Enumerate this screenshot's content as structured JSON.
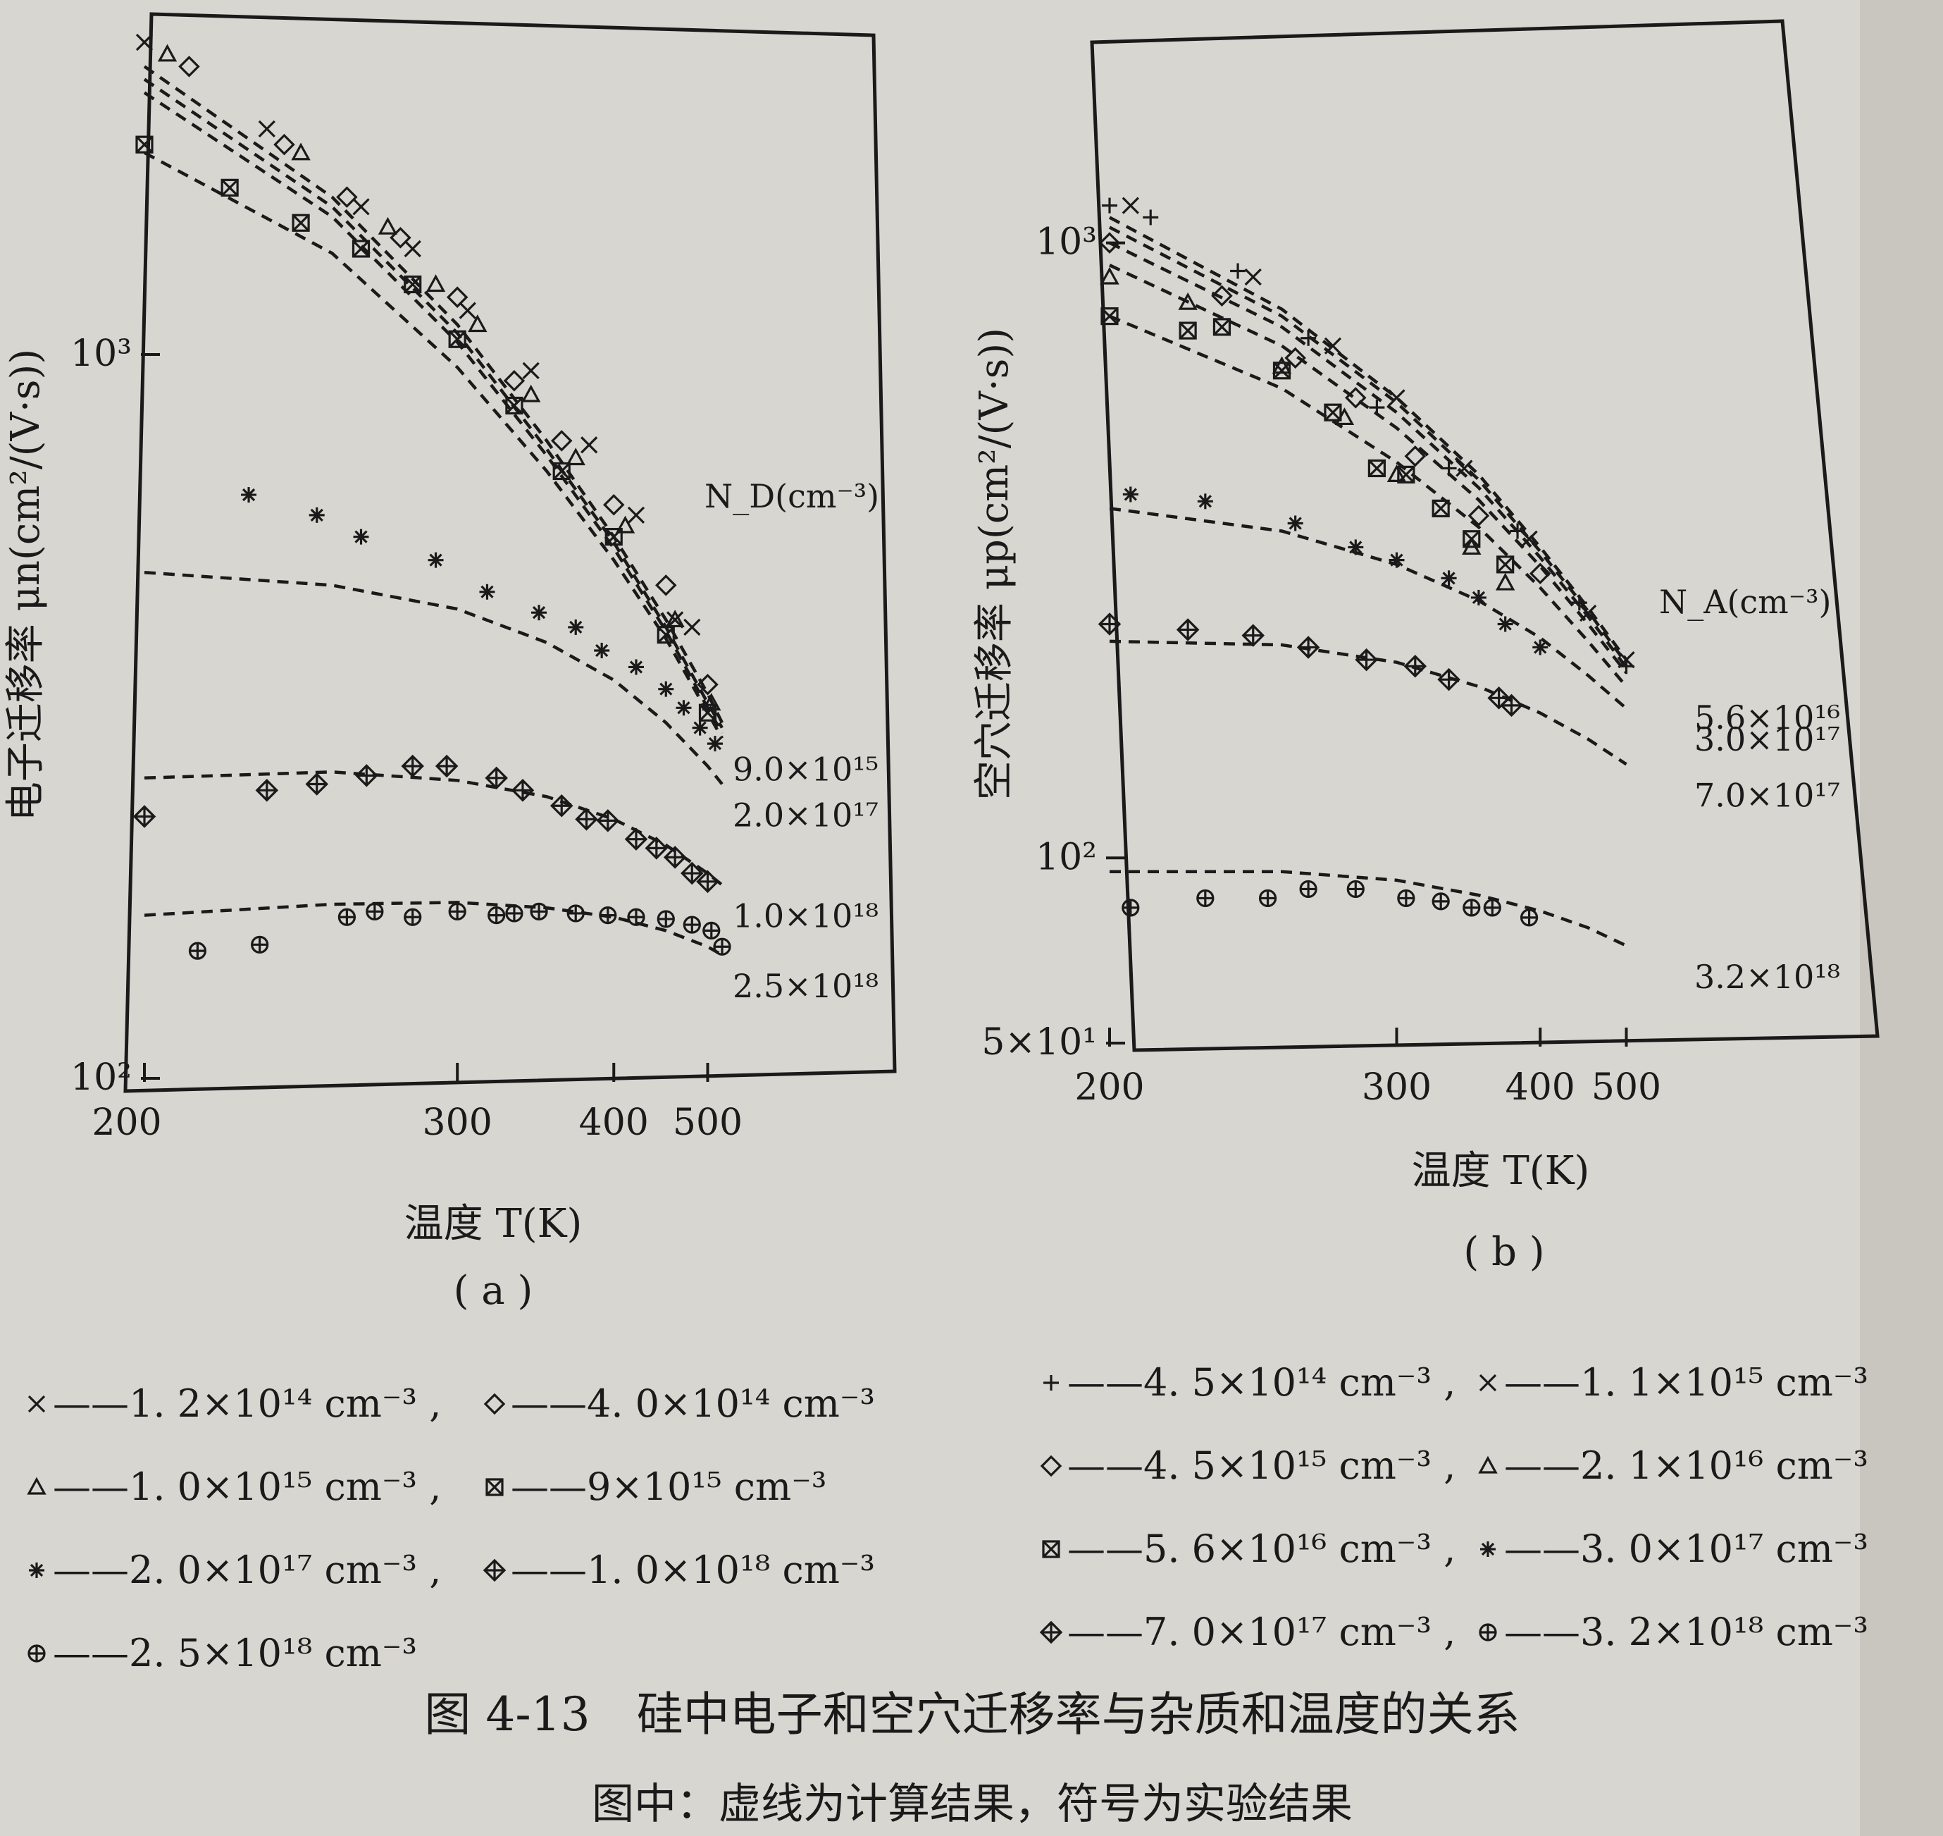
{
  "chart_data": [
    {
      "panel_label": "( a )",
      "type": "scatter",
      "xlabel": "温度 T(K)",
      "ylabel": "电子迁移率 μn(cm²/(V·s))",
      "xscale": "reciprocal",
      "yscale": "log",
      "xlim": [
        200,
        520
      ],
      "ylim": [
        100,
        2700
      ],
      "x_ticks": [
        "200",
        "300",
        "400",
        "500"
      ],
      "x_tick_values": [
        200,
        300,
        400,
        500
      ],
      "y_ticks": [
        "10²",
        "10³"
      ],
      "y_tick_values": [
        100,
        1000
      ],
      "legend_title": "N_D(cm⁻³)",
      "curve_labels": [
        "9.0×10¹⁵",
        "2.0×10¹⁷",
        "1.0×10¹⁸",
        "2.5×10¹⁸"
      ],
      "legend": [
        {
          "symbol": "x",
          "text": "——1. 2×10¹⁴ cm⁻³ ,"
        },
        {
          "symbol": "diamond",
          "text": "——4. 0×10¹⁴ cm⁻³"
        },
        {
          "symbol": "triangle",
          "text": "——1. 0×10¹⁵ cm⁻³ ,"
        },
        {
          "symbol": "boxx",
          "text": "——9×10¹⁵ cm⁻³"
        },
        {
          "symbol": "star",
          "text": "——2. 0×10¹⁷ cm⁻³ ,"
        },
        {
          "symbol": "diamondplus",
          "text": "——1. 0×10¹⁸ cm⁻³"
        },
        {
          "symbol": "circleplus",
          "text": "——2. 5×10¹⁸ cm⁻³"
        }
      ],
      "curves": [
        {
          "label": "1.2×10¹⁴",
          "x": [
            200,
            250,
            300,
            350,
            400,
            450,
            500,
            520
          ],
          "y": [
            2500,
            1650,
            1100,
            760,
            560,
            430,
            340,
            310
          ]
        },
        {
          "label": "4.0×10¹⁴",
          "x": [
            200,
            250,
            300,
            350,
            400,
            450,
            500,
            520
          ],
          "y": [
            2400,
            1600,
            1070,
            740,
            550,
            420,
            330,
            305
          ]
        },
        {
          "label": "1.0×10¹⁵",
          "x": [
            200,
            250,
            300,
            350,
            400,
            450,
            500,
            520
          ],
          "y": [
            2300,
            1550,
            1040,
            725,
            540,
            415,
            325,
            300
          ]
        },
        {
          "label": "9.0×10¹⁵",
          "x": [
            200,
            250,
            300,
            350,
            400,
            450,
            500,
            520
          ],
          "y": [
            1900,
            1380,
            960,
            690,
            520,
            405,
            320,
            295
          ]
        },
        {
          "label": "2.0×10¹⁷",
          "x": [
            200,
            250,
            300,
            350,
            400,
            450,
            500,
            520
          ],
          "y": [
            500,
            480,
            445,
            400,
            355,
            310,
            270,
            255
          ]
        },
        {
          "label": "1.0×10¹⁸",
          "x": [
            200,
            250,
            300,
            350,
            400,
            450,
            500,
            520
          ],
          "y": [
            260,
            265,
            258,
            245,
            228,
            210,
            192,
            185
          ]
        },
        {
          "label": "2.5×10¹⁸",
          "x": [
            200,
            250,
            300,
            350,
            400,
            450,
            500,
            520
          ],
          "y": [
            168,
            174,
            175,
            172,
            167,
            160,
            152,
            148
          ]
        }
      ],
      "series": [
        {
          "symbol": "x",
          "x": [
            200,
            230,
            260,
            280,
            305,
            340,
            380,
            420,
            460,
            480
          ],
          "y": [
            2700,
            2050,
            1600,
            1400,
            1150,
            950,
            750,
            600,
            430,
            420
          ]
        },
        {
          "symbol": "diamond",
          "x": [
            210,
            235,
            255,
            275,
            300,
            330,
            360,
            400,
            450,
            500
          ],
          "y": [
            2500,
            1950,
            1650,
            1450,
            1200,
            920,
            760,
            620,
            480,
            350
          ]
        },
        {
          "symbol": "triangle",
          "x": [
            205,
            240,
            270,
            290,
            310,
            340,
            370,
            410,
            460,
            505
          ],
          "y": [
            2600,
            1900,
            1500,
            1250,
            1100,
            880,
            720,
            580,
            430,
            330
          ]
        },
        {
          "symbol": "boxx",
          "x": [
            200,
            220,
            240,
            260,
            280,
            300,
            330,
            360,
            400,
            450,
            500
          ],
          "y": [
            1950,
            1700,
            1520,
            1400,
            1250,
            1050,
            850,
            690,
            560,
            410,
            320
          ]
        },
        {
          "symbol": "star",
          "x": [
            225,
            245,
            260,
            290,
            315,
            345,
            370,
            390,
            420,
            450,
            470,
            490,
            510
          ],
          "y": [
            640,
            600,
            560,
            520,
            470,
            440,
            420,
            390,
            370,
            345,
            325,
            305,
            290
          ]
        },
        {
          "symbol": "diamondplus",
          "x": [
            200,
            230,
            245,
            262,
            280,
            295,
            320,
            335,
            360,
            378,
            395,
            420,
            440,
            460,
            480,
            500
          ],
          "y": [
            230,
            250,
            255,
            262,
            270,
            270,
            260,
            250,
            238,
            228,
            227,
            214,
            208,
            202,
            192,
            187
          ]
        },
        {
          "symbol": "circleplus",
          "x": [
            212,
            228,
            255,
            265,
            280,
            300,
            320,
            330,
            345,
            370,
            395,
            420,
            450,
            480,
            505,
            520
          ],
          "y": [
            150,
            153,
            167,
            170,
            167,
            170,
            168,
            169,
            170,
            169,
            168,
            167,
            166,
            163,
            160,
            152
          ]
        }
      ]
    },
    {
      "panel_label": "( b )",
      "type": "scatter",
      "xlabel": "温度 T(K)",
      "ylabel": "空穴迁移率 μp(cm²/(V·s))",
      "xscale": "reciprocal",
      "yscale": "log",
      "xlim": [
        200,
        600
      ],
      "ylim": [
        50,
        1250
      ],
      "x_ticks": [
        "200",
        "300",
        "400",
        "500"
      ],
      "x_tick_values": [
        200,
        300,
        400,
        500
      ],
      "y_ticks": [
        "5×10¹",
        "10²",
        "10³"
      ],
      "y_tick_values": [
        50,
        100,
        1000
      ],
      "legend_title": "N_A(cm⁻³)",
      "curve_labels": [
        "5.6×10¹⁶",
        "3.0×10¹⁷",
        "7.0×10¹⁷",
        "3.2×10¹⁸"
      ],
      "legend": [
        {
          "symbol": "plus",
          "text": "——4. 5×10¹⁴ cm⁻³ ,"
        },
        {
          "symbol": "x",
          "text": "——1. 1×10¹⁵ cm⁻³"
        },
        {
          "symbol": "diamond",
          "text": "——4. 5×10¹⁵ cm⁻³ ,"
        },
        {
          "symbol": "triangle",
          "text": "——2. 1×10¹⁶ cm⁻³"
        },
        {
          "symbol": "boxx",
          "text": "——5. 6×10¹⁶ cm⁻³ ,"
        },
        {
          "symbol": "star",
          "text": "——3. 0×10¹⁷ cm⁻³"
        },
        {
          "symbol": "diamondplus",
          "text": "——7. 0×10¹⁷ cm⁻³ ,"
        },
        {
          "symbol": "circleplus",
          "text": "——3. 2×10¹⁸ cm⁻³"
        }
      ],
      "curves": [
        {
          "label": "4.5×10¹⁴",
          "x": [
            200,
            250,
            300,
            350,
            400,
            450,
            500
          ],
          "y": [
            1100,
            780,
            560,
            420,
            320,
            255,
            210
          ]
        },
        {
          "label": "1.1×10¹⁵",
          "x": [
            200,
            250,
            300,
            350,
            400,
            450,
            500
          ],
          "y": [
            1060,
            760,
            550,
            412,
            315,
            252,
            207
          ]
        },
        {
          "label": "4.5×10¹⁵",
          "x": [
            200,
            250,
            300,
            350,
            400,
            450,
            500
          ],
          "y": [
            1000,
            730,
            530,
            400,
            308,
            247,
            204
          ]
        },
        {
          "label": "2.1×10¹⁶",
          "x": [
            200,
            250,
            300,
            350,
            400,
            450,
            500
          ],
          "y": [
            920,
            680,
            500,
            382,
            298,
            240,
            200
          ]
        },
        {
          "label": "5.6×10¹⁶",
          "x": [
            200,
            250,
            300,
            350,
            400,
            450,
            500
          ],
          "y": [
            760,
            580,
            440,
            345,
            275,
            225,
            190
          ]
        },
        {
          "label": "3.0×10¹⁷",
          "x": [
            200,
            250,
            300,
            350,
            400,
            450,
            500
          ],
          "y": [
            370,
            340,
            300,
            262,
            228,
            198,
            175
          ]
        },
        {
          "label": "7.0×10¹⁷",
          "x": [
            200,
            250,
            300,
            350,
            400,
            450,
            500
          ],
          "y": [
            225,
            222,
            208,
            190,
            172,
            156,
            142
          ]
        },
        {
          "label": "3.2×10¹⁸",
          "x": [
            200,
            250,
            300,
            350,
            400,
            450,
            500
          ],
          "y": [
            95,
            95,
            92,
            87,
            82,
            77,
            72
          ]
        }
      ],
      "series": [
        {
          "symbol": "plus",
          "x": [
            200,
            210,
            235,
            260,
            290,
            330,
            380,
            440,
            500
          ],
          "y": [
            1150,
            1100,
            900,
            700,
            540,
            430,
            340,
            260,
            205
          ]
        },
        {
          "symbol": "x",
          "x": [
            205,
            240,
            270,
            300,
            340,
            390,
            450,
            500
          ],
          "y": [
            1150,
            880,
            680,
            560,
            430,
            330,
            250,
            210
          ]
        },
        {
          "symbol": "diamond",
          "x": [
            200,
            230,
            255,
            280,
            310,
            350,
            400
          ],
          "y": [
            1000,
            820,
            650,
            560,
            450,
            360,
            290
          ]
        },
        {
          "symbol": "triangle",
          "x": [
            200,
            220,
            250,
            275,
            300,
            345,
            370
          ],
          "y": [
            880,
            800,
            630,
            520,
            420,
            320,
            280
          ]
        },
        {
          "symbol": "boxx",
          "x": [
            200,
            220,
            230,
            250,
            270,
            290,
            305,
            325,
            345,
            370
          ],
          "y": [
            760,
            720,
            730,
            620,
            530,
            430,
            420,
            370,
            330,
            300
          ]
        },
        {
          "symbol": "star",
          "x": [
            205,
            225,
            255,
            280,
            300,
            330,
            350,
            370,
            400
          ],
          "y": [
            390,
            380,
            350,
            320,
            305,
            285,
            265,
            240,
            220
          ]
        },
        {
          "symbol": "diamondplus",
          "x": [
            200,
            220,
            240,
            260,
            285,
            310,
            330,
            365,
            375
          ],
          "y": [
            240,
            235,
            230,
            220,
            210,
            205,
            195,
            182,
            177
          ]
        },
        {
          "symbol": "circleplus",
          "x": [
            205,
            225,
            245,
            260,
            280,
            305,
            325,
            345,
            360,
            390
          ],
          "y": [
            83,
            86,
            86,
            89,
            89,
            86,
            85,
            83,
            83,
            80
          ]
        }
      ]
    }
  ],
  "caption": {
    "title": "图 4-13　硅中电子和空穴迁移率与杂质和温度的关系",
    "note": "图中：虚线为计算结果，符号为实验结果"
  }
}
